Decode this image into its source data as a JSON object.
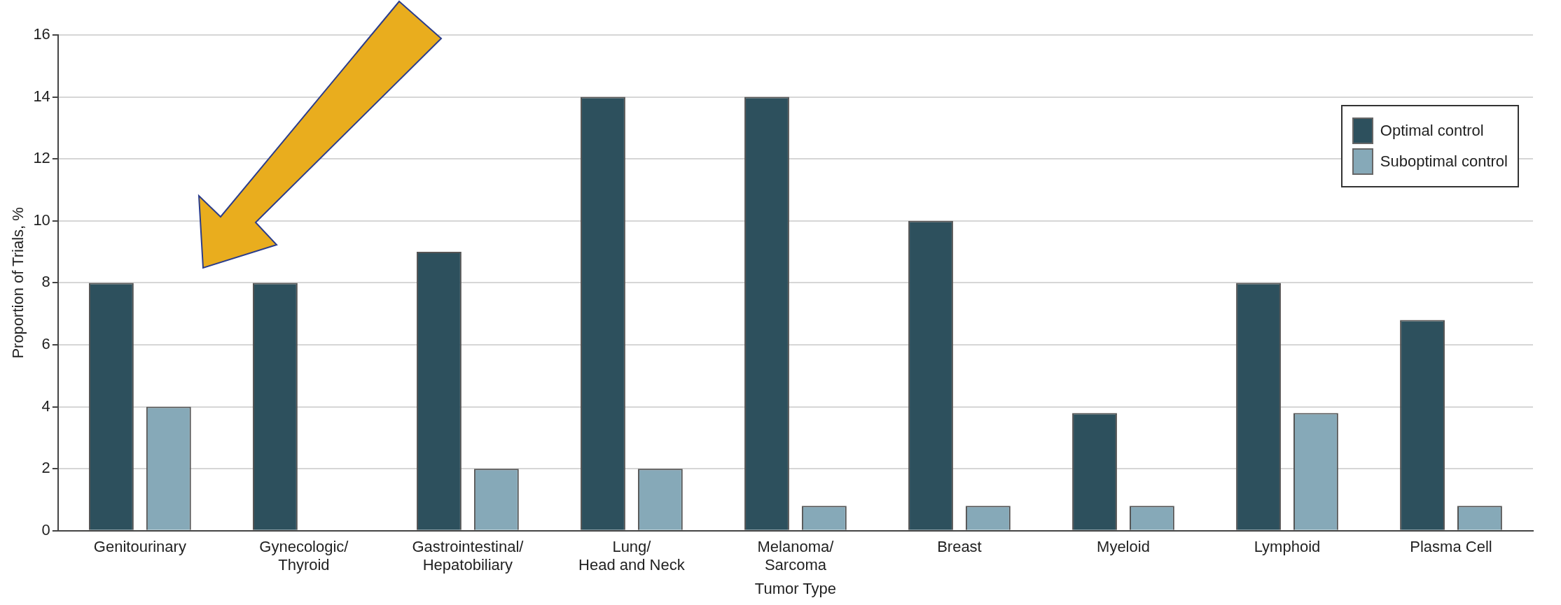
{
  "chart_data": {
    "type": "bar",
    "xlabel": "Tumor Type",
    "ylabel": "Proportion of Trials, %",
    "categories": [
      "Genitourinary",
      "Gynecologic/\nThyroid",
      "Gastrointestinal/\nHepatobiliary",
      "Lung/\nHead and Neck",
      "Melanoma/\nSarcoma",
      "Breast",
      "Myeloid",
      "Lymphoid",
      "Plasma Cell"
    ],
    "series": [
      {
        "name": "Optimal control",
        "color": "#2d505d",
        "values": [
          8,
          8,
          9,
          14,
          14,
          10,
          3.8,
          8,
          6.8
        ]
      },
      {
        "name": "Suboptimal control",
        "color": "#86a9b8",
        "values": [
          4,
          null,
          2,
          2,
          0.8,
          0.8,
          0.8,
          3.8,
          0.8
        ]
      }
    ],
    "ylim": [
      0,
      16
    ],
    "yticks": [
      0,
      2,
      4,
      6,
      8,
      10,
      12,
      14,
      16
    ],
    "grid": "y",
    "legend": "top right"
  }
}
